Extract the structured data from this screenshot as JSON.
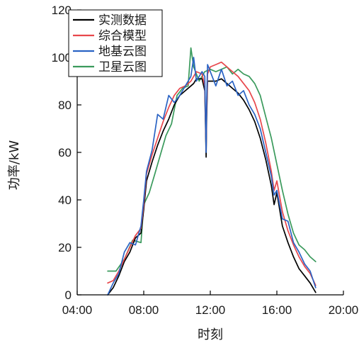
{
  "chart_data": {
    "type": "line",
    "title": "",
    "xlabel": "时刻",
    "ylabel": "功率/kW",
    "xlim": [
      "04:00",
      "20:00"
    ],
    "ylim": [
      0,
      120
    ],
    "x_ticks": [
      "04:00",
      "08:00",
      "12:00",
      "16:00",
      "20:00"
    ],
    "y_ticks": [
      0,
      20,
      40,
      60,
      80,
      100,
      120
    ],
    "grid": false,
    "legend_position": "top-left",
    "series": [
      {
        "name": "实测数据",
        "color": "#000000",
        "x": [
          "05:50",
          "06:10",
          "06:30",
          "06:50",
          "07:10",
          "07:30",
          "07:50",
          "08:00",
          "08:10",
          "08:30",
          "08:50",
          "09:10",
          "09:30",
          "09:50",
          "10:10",
          "10:30",
          "10:50",
          "11:00",
          "11:10",
          "11:30",
          "11:40",
          "11:45",
          "11:47",
          "11:50",
          "12:00",
          "12:20",
          "12:40",
          "13:00",
          "13:20",
          "13:40",
          "14:00",
          "14:20",
          "14:40",
          "15:00",
          "15:20",
          "15:40",
          "15:50",
          "16:00",
          "16:20",
          "16:40",
          "17:00",
          "17:20",
          "17:40",
          "18:00",
          "18:20"
        ],
        "values": [
          0,
          3,
          8,
          14,
          18,
          24,
          26,
          36,
          48,
          56,
          63,
          69,
          74,
          80,
          84,
          86,
          88,
          89,
          91,
          91,
          86,
          58,
          75,
          90,
          90,
          90,
          91,
          89,
          87,
          85,
          82,
          78,
          73,
          66,
          57,
          46,
          38,
          43,
          29,
          22,
          16,
          11,
          8,
          5,
          1
        ]
      },
      {
        "name": "综合模型",
        "color": "#e8474c",
        "x": [
          "05:50",
          "06:10",
          "06:30",
          "06:50",
          "07:10",
          "07:30",
          "07:50",
          "08:00",
          "08:10",
          "08:30",
          "08:50",
          "09:10",
          "09:30",
          "09:50",
          "10:10",
          "10:30",
          "10:50",
          "11:00",
          "11:10",
          "11:30",
          "11:40",
          "11:45",
          "11:47",
          "11:50",
          "12:00",
          "12:20",
          "12:40",
          "13:00",
          "13:20",
          "13:40",
          "14:00",
          "14:20",
          "14:40",
          "15:00",
          "15:20",
          "15:40",
          "15:50",
          "16:00",
          "16:20",
          "16:40",
          "17:00",
          "17:20",
          "17:40",
          "18:00",
          "18:20"
        ],
        "values": [
          5,
          6,
          10,
          15,
          20,
          25,
          28,
          38,
          51,
          59,
          66,
          73,
          79,
          84,
          87,
          88,
          90,
          92,
          94,
          93,
          88,
          61,
          78,
          93,
          96,
          97,
          98,
          96,
          94,
          92,
          89,
          86,
          81,
          74,
          64,
          52,
          44,
          48,
          35,
          27,
          21,
          16,
          12,
          9,
          4
        ]
      },
      {
        "name": "地基云图",
        "color": "#2a63c4",
        "x": [
          "05:50",
          "06:10",
          "06:30",
          "06:50",
          "07:10",
          "07:30",
          "07:50",
          "08:00",
          "08:10",
          "08:30",
          "08:50",
          "09:10",
          "09:30",
          "09:50",
          "10:10",
          "10:30",
          "10:50",
          "11:00",
          "11:10",
          "11:30",
          "11:40",
          "11:45",
          "11:47",
          "11:50",
          "12:00",
          "12:20",
          "12:40",
          "13:00",
          "13:20",
          "13:40",
          "14:00",
          "14:20",
          "14:40",
          "15:00",
          "15:20",
          "15:40",
          "15:50",
          "16:00",
          "16:20",
          "16:40",
          "17:00",
          "17:20",
          "17:40",
          "18:00",
          "18:20"
        ],
        "values": [
          0,
          5,
          9,
          18,
          22,
          21,
          29,
          40,
          52,
          61,
          76,
          74,
          84,
          81,
          84,
          88,
          92,
          100,
          90,
          94,
          92,
          60,
          82,
          97,
          94,
          88,
          95,
          88,
          90,
          84,
          86,
          80,
          76,
          70,
          60,
          50,
          42,
          44,
          32,
          31,
          22,
          18,
          13,
          10,
          3
        ]
      },
      {
        "name": "卫星云图",
        "color": "#3a9a5c",
        "x": [
          "05:50",
          "06:20",
          "06:50",
          "07:20",
          "07:50",
          "08:00",
          "08:20",
          "08:40",
          "09:00",
          "09:20",
          "09:40",
          "10:00",
          "10:20",
          "10:40",
          "10:50",
          "11:00",
          "11:20",
          "11:40",
          "12:00",
          "12:20",
          "12:40",
          "13:00",
          "13:20",
          "13:40",
          "14:00",
          "14:20",
          "14:40",
          "15:00",
          "15:20",
          "15:40",
          "16:00",
          "16:20",
          "16:40",
          "17:00",
          "17:20",
          "17:40",
          "18:00",
          "18:20"
        ],
        "values": [
          10,
          10,
          15,
          23,
          22,
          38,
          43,
          51,
          59,
          67,
          72,
          84,
          87,
          88,
          104,
          96,
          90,
          94,
          95,
          94,
          95,
          96,
          93,
          95,
          93,
          92,
          89,
          84,
          75,
          66,
          55,
          44,
          34,
          26,
          21,
          19,
          16,
          14
        ]
      }
    ]
  }
}
